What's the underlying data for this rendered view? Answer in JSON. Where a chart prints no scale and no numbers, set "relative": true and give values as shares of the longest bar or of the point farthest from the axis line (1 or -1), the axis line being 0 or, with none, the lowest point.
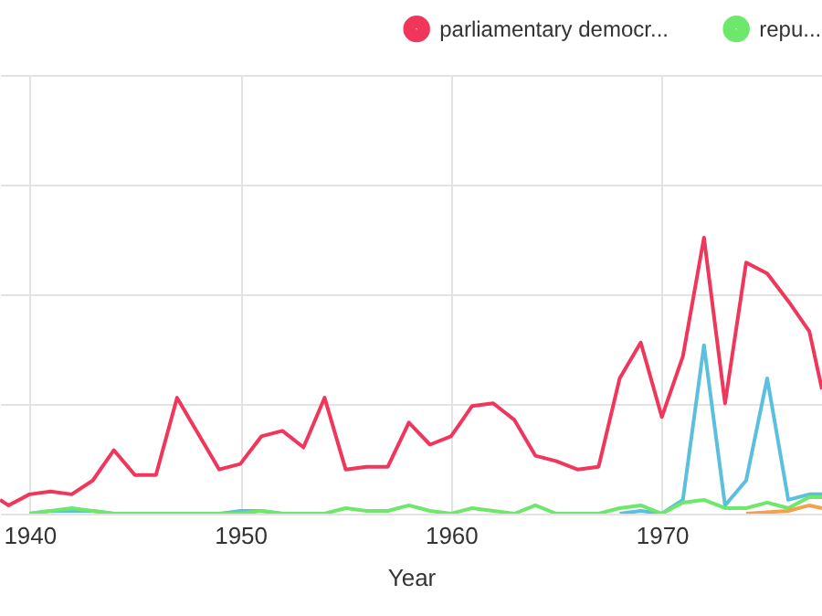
{
  "chart_data": {
    "type": "line",
    "xlabel": "Year",
    "relative": true,
    "grid": true,
    "legend": "top right",
    "marker": "none",
    "line_style": "solid",
    "x": [
      1938.6,
      1939,
      1940,
      1941,
      1942,
      1943,
      1944,
      1945,
      1946,
      1947,
      1948,
      1949,
      1950,
      1951,
      1952,
      1953,
      1954,
      1955,
      1956,
      1957,
      1958,
      1959,
      1960,
      1961,
      1962,
      1963,
      1964,
      1965,
      1966,
      1967,
      1968,
      1969,
      1970,
      1971,
      1972,
      1973,
      1974,
      1975,
      1976,
      1977,
      1977.6
    ],
    "xlim": [
      1938.6,
      1977.6
    ],
    "xticks": [
      1940,
      1950,
      1960,
      1970
    ],
    "series": [
      {
        "name": "parliamentary democr...",
        "color": "#f0365a",
        "values": [
          0.05,
          0.03,
          0.07,
          0.08,
          0.07,
          0.12,
          0.23,
          0.14,
          0.14,
          0.42,
          0.29,
          0.16,
          0.18,
          0.28,
          0.3,
          0.24,
          0.42,
          0.16,
          0.17,
          0.17,
          0.33,
          0.25,
          0.28,
          0.39,
          0.4,
          0.34,
          0.21,
          0.19,
          0.16,
          0.17,
          0.49,
          0.62,
          0.35,
          0.57,
          1,
          0.4,
          0.91,
          0.87,
          0.77,
          0.66,
          0.45
        ]
      },
      {
        "color": "#5bc0de",
        "values": [
          null,
          null,
          0,
          0.01,
          0.01,
          0.01,
          0,
          null,
          null,
          null,
          null,
          0,
          0.01,
          0.01,
          0,
          null,
          null,
          null,
          null,
          null,
          null,
          null,
          null,
          null,
          null,
          null,
          null,
          null,
          null,
          null,
          0,
          0.01,
          0,
          0.05,
          0.61,
          0.03,
          0.12,
          0.49,
          0.05,
          0.07,
          0.07
        ]
      },
      {
        "name": "repu...",
        "color": "#6ee86a",
        "values": [
          null,
          null,
          0,
          0.01,
          0.02,
          0.01,
          0,
          0,
          0,
          0,
          0,
          0,
          0,
          0.01,
          0,
          0,
          0,
          0.02,
          0.01,
          0.01,
          0.03,
          0.01,
          0,
          0.02,
          0.01,
          0,
          0.03,
          0,
          0,
          0,
          0.02,
          0.03,
          0,
          0.04,
          0.05,
          0.02,
          0.02,
          0.04,
          0.02,
          0.06,
          0.06
        ]
      },
      {
        "color": "#f5a04a",
        "values": [
          null,
          null,
          null,
          null,
          null,
          null,
          null,
          null,
          null,
          null,
          null,
          null,
          null,
          null,
          null,
          null,
          null,
          null,
          null,
          null,
          null,
          null,
          null,
          null,
          null,
          null,
          null,
          null,
          null,
          null,
          null,
          null,
          null,
          null,
          null,
          null,
          0,
          0.005,
          0.01,
          0.03,
          0.02
        ]
      }
    ]
  }
}
